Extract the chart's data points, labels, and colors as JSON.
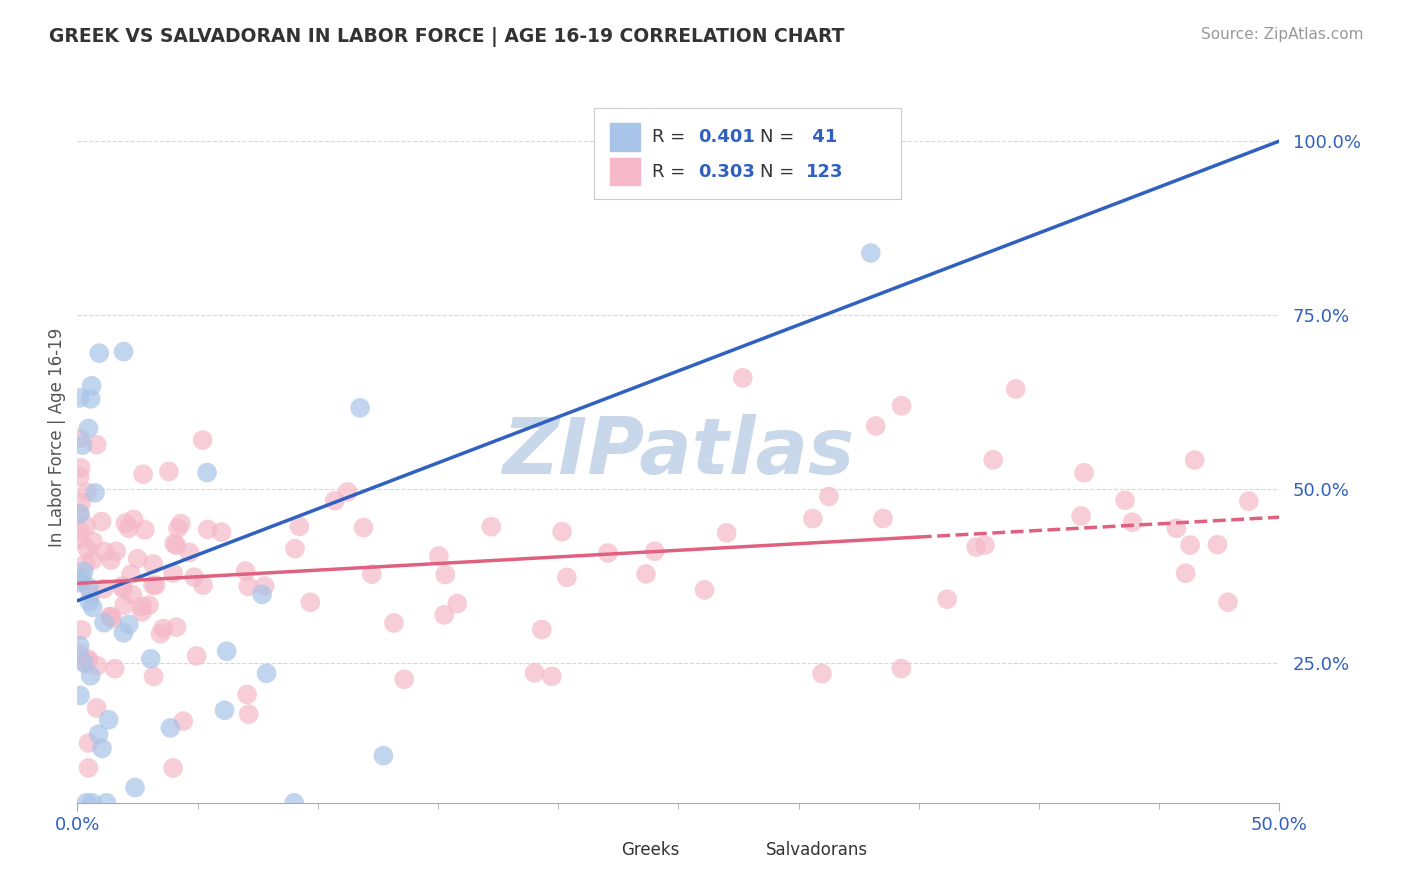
{
  "title": "GREEK VS SALVADORAN IN LABOR FORCE | AGE 16-19 CORRELATION CHART",
  "source": "Source: ZipAtlas.com",
  "ylabel": "In Labor Force | Age 16-19",
  "ytick_vals": [
    0.25,
    0.5,
    0.75,
    1.0
  ],
  "xlim": [
    0.0,
    0.5
  ],
  "ylim": [
    0.05,
    1.1
  ],
  "greek_color": "#a8c4e8",
  "salvadoran_color": "#f5b8c8",
  "greek_line_color": "#3060c0",
  "salvadoran_line_color": "#e06080",
  "R_greek": 0.401,
  "N_greek": 41,
  "R_salvadoran": 0.303,
  "N_salvadoran": 123,
  "watermark": "ZIPatlas",
  "watermark_color": "#c8d8ea",
  "background_color": "#ffffff",
  "grid_color": "#d8d8d8",
  "title_color": "#333333",
  "tick_label_color": "#3060c0",
  "legend_text_color": "#333333",
  "blue_line_x0": 0.0,
  "blue_line_y0": 0.34,
  "blue_line_x1": 0.5,
  "blue_line_y1": 1.0,
  "pink_line_x0": 0.0,
  "pink_line_y0": 0.365,
  "pink_line_x1": 0.5,
  "pink_line_y1": 0.46
}
